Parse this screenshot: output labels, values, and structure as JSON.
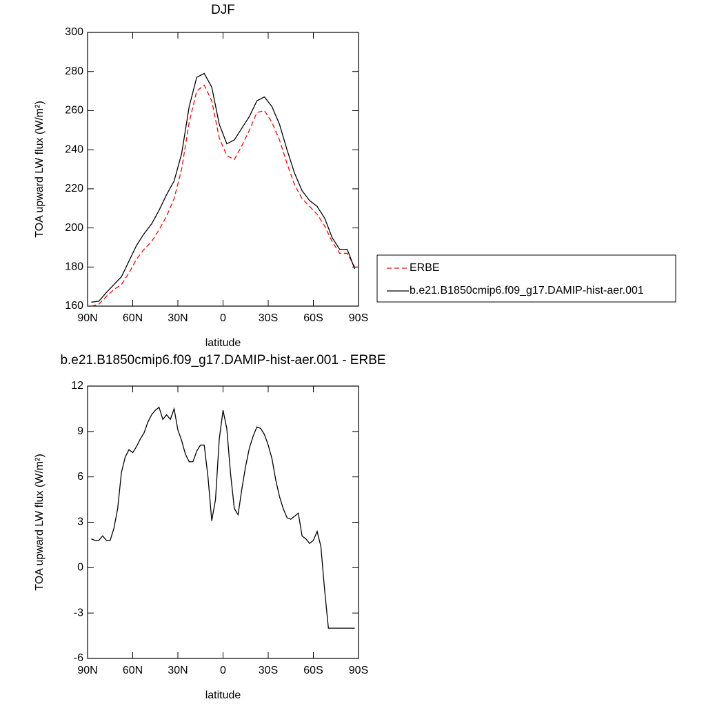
{
  "chart_data": [
    {
      "type": "line",
      "title": "DJF",
      "xlabel": "latitude",
      "ylabel": "TOA upward LW flux (W/m²)",
      "x": [
        87.5,
        82.5,
        77.5,
        72.5,
        67.5,
        62.5,
        57.5,
        52.5,
        47.5,
        42.5,
        37.5,
        32.5,
        27.5,
        22.5,
        17.5,
        12.5,
        7.5,
        2.5,
        -2.5,
        -7.5,
        -12.5,
        -17.5,
        -22.5,
        -27.5,
        -32.5,
        -37.5,
        -42.5,
        -47.5,
        -52.5,
        -57.5,
        -62.5,
        -67.5,
        -72.5,
        -77.5,
        -82.5,
        -87.5
      ],
      "series": [
        {
          "name": "ERBE",
          "color": "#ff0000",
          "line_style": "dashed",
          "values": [
            160,
            161,
            165,
            168.5,
            171,
            177,
            184,
            189,
            193,
            199,
            206,
            215,
            230,
            254,
            270,
            273,
            265,
            246,
            237,
            235,
            242,
            250,
            259,
            260,
            254,
            245,
            233,
            222,
            215,
            211,
            207,
            201,
            193,
            187,
            187,
            180
          ]
        },
        {
          "name": "b.e21.B1850cmip6.f09_g17.DAMIP-hist-aer.001",
          "color": "#000000",
          "line_style": "solid",
          "values": [
            162,
            162.5,
            167,
            171,
            175,
            183,
            191,
            197,
            202,
            209,
            217,
            224,
            238,
            262,
            277,
            279,
            272,
            253,
            243,
            245,
            251,
            257,
            265,
            267,
            262,
            253,
            240,
            228,
            219,
            214,
            211,
            205,
            195,
            189,
            189,
            179
          ]
        }
      ],
      "xlim": [
        90,
        -90
      ],
      "xticks": [
        {
          "value": 90,
          "label": "90N"
        },
        {
          "value": 60,
          "label": "60N"
        },
        {
          "value": 30,
          "label": "30N"
        },
        0,
        {
          "value": -30,
          "label": "30S"
        },
        {
          "value": -60,
          "label": "60S"
        },
        {
          "value": -90,
          "label": "90S"
        }
      ],
      "ylim": [
        160,
        300
      ],
      "yticks": [
        160,
        180,
        200,
        220,
        240,
        260,
        280,
        300
      ]
    },
    {
      "type": "line",
      "title": "b.e21.B1850cmip6.f09_g17.DAMIP-hist-aer.001 - ERBE",
      "xlabel": "latitude",
      "ylabel": "TOA upward LW flux (W/m²)",
      "x": [
        87.5,
        85,
        82.5,
        80,
        77.5,
        75,
        72.5,
        70,
        67.5,
        65,
        62.5,
        60,
        57.5,
        55,
        52.5,
        50,
        47.5,
        45,
        42.5,
        40,
        37.5,
        35,
        32.5,
        30,
        27.5,
        25,
        22.5,
        20,
        17.5,
        15,
        12.5,
        10,
        7.5,
        5,
        2.5,
        0,
        -2.5,
        -5,
        -7.5,
        -10,
        -12.5,
        -15,
        -17.5,
        -20,
        -22.5,
        -25,
        -27.5,
        -30,
        -32.5,
        -35,
        -37.5,
        -40,
        -42.5,
        -45,
        -47.5,
        -50,
        -52.5,
        -55,
        -57.5,
        -60,
        -62.5,
        -65,
        -67.5,
        -70,
        -72.5,
        -75,
        -77.5,
        -80,
        -82.5,
        -85,
        -87.5
      ],
      "color": "#000000",
      "values": [
        1.9,
        1.8,
        1.8,
        2.1,
        1.8,
        1.8,
        2.6,
        3.9,
        6.3,
        7.3,
        7.8,
        7.6,
        8.0,
        8.5,
        8.9,
        9.6,
        10.1,
        10.4,
        10.6,
        9.8,
        10.1,
        9.8,
        10.5,
        9.1,
        8.4,
        7.5,
        7.0,
        7.0,
        7.7,
        8.1,
        8.1,
        6.0,
        3.1,
        4.5,
        8.5,
        10.4,
        9.2,
        6.2,
        3.9,
        3.5,
        5.2,
        6.7,
        7.9,
        8.7,
        9.3,
        9.2,
        8.8,
        8.1,
        7.2,
        5.8,
        4.7,
        3.9,
        3.3,
        3.2,
        3.4,
        3.6,
        2.1,
        1.9,
        1.6,
        1.8,
        2.4,
        1.4,
        -1.5,
        -4.0,
        -4.0,
        -4.0,
        -4.0,
        -4.0,
        -4.0,
        -4.0,
        -4.0
      ],
      "xlim": [
        90,
        -90
      ],
      "xticks": [
        {
          "value": 90,
          "label": "90N"
        },
        {
          "value": 60,
          "label": "60N"
        },
        {
          "value": 30,
          "label": "30N"
        },
        0,
        {
          "value": -30,
          "label": "30S"
        },
        {
          "value": -60,
          "label": "60S"
        },
        {
          "value": -90,
          "label": "90S"
        }
      ],
      "ylim": [
        -6,
        12
      ],
      "yticks": [
        -6,
        -3,
        0,
        3,
        6,
        9,
        12
      ]
    }
  ]
}
